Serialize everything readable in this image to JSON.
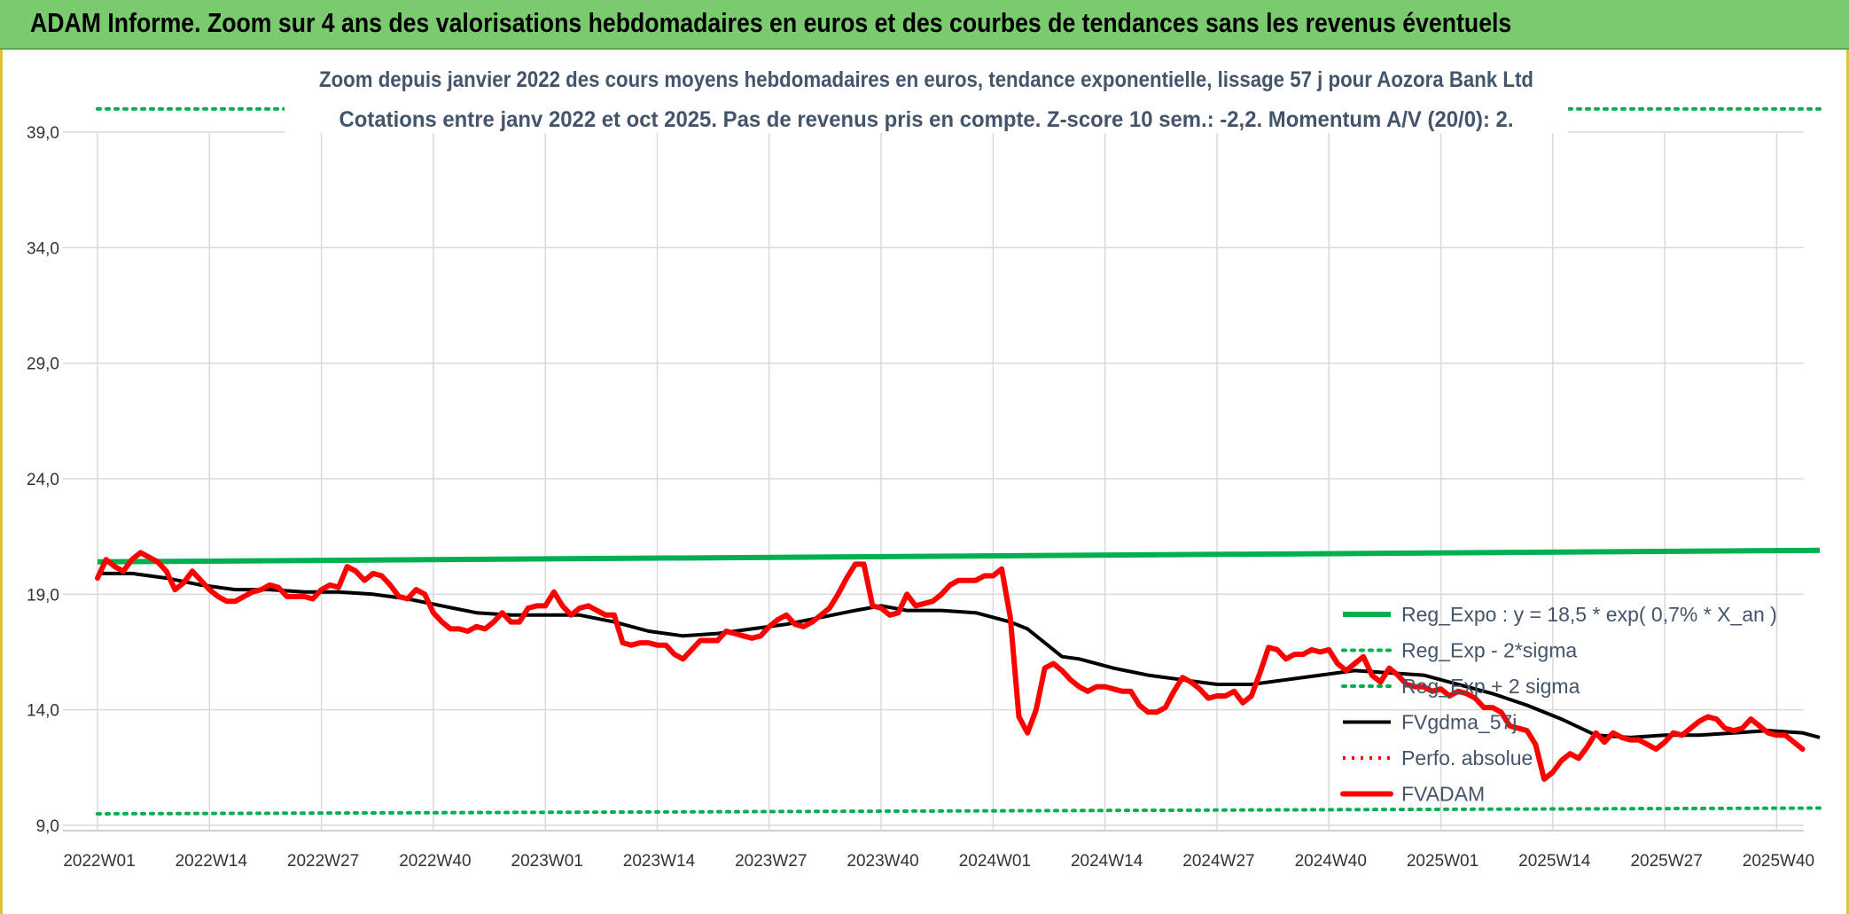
{
  "banner": {
    "title": "ADAM Informe. Zoom sur 4 ans des valorisations hebdomadaires en euros et des courbes de tendances sans les revenus éventuels"
  },
  "chart_data": {
    "type": "line",
    "title": "Zoom depuis janvier 2022 des cours moyens hebdomadaires en euros, tendance exponentielle, lissage 57 j pour Aozora Bank Ltd",
    "subtitle": "Cotations entre janv 2022 et oct 2025. Pas de revenus pris en compte. Z-score 10 sem.: -2,2. Momentum A/V (20/0): 2.",
    "xlabel": "",
    "ylabel": "",
    "ylim": [
      9.0,
      41.0
    ],
    "y_ticks": [
      "9,0",
      "14,0",
      "19,0",
      "24,0",
      "29,0",
      "34,0",
      "39,0"
    ],
    "y_tick_values": [
      9,
      14,
      19,
      24,
      29,
      34,
      39
    ],
    "x_ticks": [
      "2022W01",
      "2022W14",
      "2022W27",
      "2022W40",
      "2023W01",
      "2023W14",
      "2023W27",
      "2023W40",
      "2024W01",
      "2024W14",
      "2024W27",
      "2024W40",
      "2025W01",
      "2025W14",
      "2025W27",
      "2025W40"
    ],
    "x_tick_weeks": [
      0,
      13,
      26,
      39,
      52,
      65,
      78,
      91,
      104,
      117,
      130,
      143,
      156,
      169,
      182,
      195
    ],
    "x_range": [
      0,
      200
    ],
    "grid": true,
    "legend_placement": "bottom-right",
    "colors": {
      "reg_expo": "#00b050",
      "sigma": "#00b050",
      "fvgdma": "#000000",
      "perfo": "#ff0000",
      "fvadam": "#ff0000"
    },
    "legend": [
      {
        "key": "reg_expo",
        "label": "Reg_Expo : y = 18,5 * exp( 0,7% *  X_an )",
        "style": "solid-thick",
        "color": "#00b050"
      },
      {
        "key": "lower",
        "label": "Reg_Exp - 2*sigma",
        "style": "dotted",
        "color": "#00b050"
      },
      {
        "key": "upper",
        "label": "Reg_Exp + 2 sigma",
        "style": "dotted",
        "color": "#00b050"
      },
      {
        "key": "fvgdma",
        "label": "FVgdma_57j",
        "style": "solid",
        "color": "#000000"
      },
      {
        "key": "perfo",
        "label": "Perfo. absolue",
        "style": "dotted",
        "color": "#ff0000"
      },
      {
        "key": "fvadam",
        "label": "FVADAM",
        "style": "solid-thick",
        "color": "#ff0000"
      }
    ],
    "series": [
      {
        "name": "Reg_Expo : y = 18,5 * exp( 0,7% *  X_an )",
        "key": "reg_expo",
        "points": [
          [
            0,
            20.4
          ],
          [
            200,
            20.9
          ]
        ]
      },
      {
        "name": "Reg_Exp - 2*sigma",
        "key": "lower",
        "points": [
          [
            0,
            9.5
          ],
          [
            200,
            9.75
          ]
        ]
      },
      {
        "name": "Reg_Exp + 2 sigma",
        "key": "upper",
        "points": [
          [
            0,
            40.0
          ],
          [
            200,
            40.0
          ]
        ]
      },
      {
        "name": "FVgdma_57j",
        "key": "fvgdma",
        "points": [
          [
            0,
            19.9
          ],
          [
            4,
            19.9
          ],
          [
            8,
            19.7
          ],
          [
            12,
            19.4
          ],
          [
            16,
            19.2
          ],
          [
            20,
            19.2
          ],
          [
            24,
            19.1
          ],
          [
            28,
            19.1
          ],
          [
            32,
            19.0
          ],
          [
            36,
            18.8
          ],
          [
            40,
            18.5
          ],
          [
            44,
            18.2
          ],
          [
            48,
            18.1
          ],
          [
            52,
            18.1
          ],
          [
            56,
            18.1
          ],
          [
            60,
            17.8
          ],
          [
            64,
            17.4
          ],
          [
            68,
            17.2
          ],
          [
            72,
            17.3
          ],
          [
            76,
            17.5
          ],
          [
            80,
            17.7
          ],
          [
            84,
            18.0
          ],
          [
            88,
            18.3
          ],
          [
            91,
            18.5
          ],
          [
            94,
            18.3
          ],
          [
            98,
            18.3
          ],
          [
            102,
            18.2
          ],
          [
            106,
            17.8
          ],
          [
            108,
            17.5
          ],
          [
            110,
            16.9
          ],
          [
            112,
            16.3
          ],
          [
            114,
            16.2
          ],
          [
            118,
            15.8
          ],
          [
            122,
            15.5
          ],
          [
            126,
            15.3
          ],
          [
            130,
            15.1
          ],
          [
            134,
            15.1
          ],
          [
            138,
            15.3
          ],
          [
            142,
            15.5
          ],
          [
            146,
            15.7
          ],
          [
            150,
            15.6
          ],
          [
            154,
            15.5
          ],
          [
            158,
            15.1
          ],
          [
            162,
            14.7
          ],
          [
            166,
            14.2
          ],
          [
            170,
            13.6
          ],
          [
            174,
            12.9
          ],
          [
            178,
            12.8
          ],
          [
            182,
            12.9
          ],
          [
            186,
            12.9
          ],
          [
            190,
            13.0
          ],
          [
            194,
            13.1
          ],
          [
            198,
            13.0
          ],
          [
            200,
            12.8
          ]
        ]
      },
      {
        "name": "Perfo. absolue",
        "key": "perfo",
        "points": []
      },
      {
        "name": "FVADAM",
        "key": "fvadam",
        "points": [
          [
            0,
            19.7
          ],
          [
            1,
            20.5
          ],
          [
            2,
            20.2
          ],
          [
            3,
            20.0
          ],
          [
            4,
            20.5
          ],
          [
            5,
            20.8
          ],
          [
            6,
            20.6
          ],
          [
            7,
            20.4
          ],
          [
            8,
            20.0
          ],
          [
            9,
            19.2
          ],
          [
            10,
            19.5
          ],
          [
            11,
            20.0
          ],
          [
            12,
            19.6
          ],
          [
            13,
            19.2
          ],
          [
            14,
            18.9
          ],
          [
            15,
            18.7
          ],
          [
            16,
            18.7
          ],
          [
            17,
            18.9
          ],
          [
            18,
            19.1
          ],
          [
            19,
            19.2
          ],
          [
            20,
            19.4
          ],
          [
            21,
            19.3
          ],
          [
            22,
            18.9
          ],
          [
            23,
            18.9
          ],
          [
            24,
            18.9
          ],
          [
            25,
            18.8
          ],
          [
            26,
            19.2
          ],
          [
            27,
            19.4
          ],
          [
            28,
            19.3
          ],
          [
            29,
            20.2
          ],
          [
            30,
            20.0
          ],
          [
            31,
            19.6
          ],
          [
            32,
            19.9
          ],
          [
            33,
            19.8
          ],
          [
            34,
            19.4
          ],
          [
            35,
            18.9
          ],
          [
            36,
            18.8
          ],
          [
            37,
            19.2
          ],
          [
            38,
            19.0
          ],
          [
            39,
            18.2
          ],
          [
            40,
            17.8
          ],
          [
            41,
            17.5
          ],
          [
            42,
            17.5
          ],
          [
            43,
            17.4
          ],
          [
            44,
            17.6
          ],
          [
            45,
            17.5
          ],
          [
            46,
            17.8
          ],
          [
            47,
            18.2
          ],
          [
            48,
            17.8
          ],
          [
            49,
            17.8
          ],
          [
            50,
            18.4
          ],
          [
            51,
            18.5
          ],
          [
            52,
            18.5
          ],
          [
            53,
            19.1
          ],
          [
            54,
            18.5
          ],
          [
            55,
            18.1
          ],
          [
            56,
            18.4
          ],
          [
            57,
            18.5
          ],
          [
            58,
            18.3
          ],
          [
            59,
            18.1
          ],
          [
            60,
            18.1
          ],
          [
            61,
            16.9
          ],
          [
            62,
            16.8
          ],
          [
            63,
            16.9
          ],
          [
            64,
            16.9
          ],
          [
            65,
            16.8
          ],
          [
            66,
            16.8
          ],
          [
            67,
            16.4
          ],
          [
            68,
            16.2
          ],
          [
            69,
            16.6
          ],
          [
            70,
            17.0
          ],
          [
            71,
            17.0
          ],
          [
            72,
            17.0
          ],
          [
            73,
            17.4
          ],
          [
            74,
            17.3
          ],
          [
            75,
            17.2
          ],
          [
            76,
            17.1
          ],
          [
            77,
            17.2
          ],
          [
            78,
            17.6
          ],
          [
            79,
            17.9
          ],
          [
            80,
            18.1
          ],
          [
            81,
            17.7
          ],
          [
            82,
            17.6
          ],
          [
            83,
            17.8
          ],
          [
            84,
            18.1
          ],
          [
            85,
            18.4
          ],
          [
            86,
            19.0
          ],
          [
            87,
            19.7
          ],
          [
            88,
            20.3
          ],
          [
            89,
            20.3
          ],
          [
            90,
            18.5
          ],
          [
            91,
            18.4
          ],
          [
            92,
            18.1
          ],
          [
            93,
            18.2
          ],
          [
            94,
            19.0
          ],
          [
            95,
            18.5
          ],
          [
            96,
            18.6
          ],
          [
            97,
            18.7
          ],
          [
            98,
            19.0
          ],
          [
            99,
            19.4
          ],
          [
            100,
            19.6
          ],
          [
            101,
            19.6
          ],
          [
            102,
            19.6
          ],
          [
            103,
            19.8
          ],
          [
            104,
            19.8
          ],
          [
            105,
            20.1
          ],
          [
            106,
            18.0
          ],
          [
            107,
            13.7
          ],
          [
            108,
            13.0
          ],
          [
            109,
            14.0
          ],
          [
            110,
            15.8
          ],
          [
            111,
            16.0
          ],
          [
            112,
            15.7
          ],
          [
            113,
            15.3
          ],
          [
            114,
            15.0
          ],
          [
            115,
            14.8
          ],
          [
            116,
            15.0
          ],
          [
            117,
            15.0
          ],
          [
            118,
            14.9
          ],
          [
            119,
            14.8
          ],
          [
            120,
            14.8
          ],
          [
            121,
            14.2
          ],
          [
            122,
            13.9
          ],
          [
            123,
            13.9
          ],
          [
            124,
            14.1
          ],
          [
            125,
            14.8
          ],
          [
            126,
            15.4
          ],
          [
            127,
            15.2
          ],
          [
            128,
            14.9
          ],
          [
            129,
            14.5
          ],
          [
            130,
            14.6
          ],
          [
            131,
            14.6
          ],
          [
            132,
            14.8
          ],
          [
            133,
            14.3
          ],
          [
            134,
            14.6
          ],
          [
            135,
            15.6
          ],
          [
            136,
            16.7
          ],
          [
            137,
            16.6
          ],
          [
            138,
            16.2
          ],
          [
            139,
            16.4
          ],
          [
            140,
            16.4
          ],
          [
            141,
            16.6
          ],
          [
            142,
            16.5
          ],
          [
            143,
            16.6
          ],
          [
            144,
            16.0
          ],
          [
            145,
            15.7
          ],
          [
            146,
            16.0
          ],
          [
            147,
            16.3
          ],
          [
            148,
            15.5
          ],
          [
            149,
            15.2
          ],
          [
            150,
            15.8
          ],
          [
            151,
            15.5
          ],
          [
            152,
            15.1
          ],
          [
            153,
            15.0
          ],
          [
            154,
            15.0
          ],
          [
            155,
            14.8
          ],
          [
            156,
            14.9
          ],
          [
            157,
            14.6
          ],
          [
            158,
            14.8
          ],
          [
            159,
            14.7
          ],
          [
            160,
            14.5
          ],
          [
            161,
            14.1
          ],
          [
            162,
            14.1
          ],
          [
            163,
            13.9
          ],
          [
            164,
            13.3
          ],
          [
            165,
            13.2
          ],
          [
            166,
            13.1
          ],
          [
            167,
            12.5
          ],
          [
            168,
            11.0
          ],
          [
            169,
            11.3
          ],
          [
            170,
            11.8
          ],
          [
            171,
            12.1
          ],
          [
            172,
            11.9
          ],
          [
            173,
            12.4
          ],
          [
            174,
            13.0
          ],
          [
            175,
            12.6
          ],
          [
            176,
            13.0
          ],
          [
            177,
            12.8
          ],
          [
            178,
            12.7
          ],
          [
            179,
            12.7
          ],
          [
            180,
            12.5
          ],
          [
            181,
            12.3
          ],
          [
            182,
            12.6
          ],
          [
            183,
            13.0
          ],
          [
            184,
            12.9
          ],
          [
            185,
            13.2
          ],
          [
            186,
            13.5
          ],
          [
            187,
            13.7
          ],
          [
            188,
            13.6
          ],
          [
            189,
            13.2
          ],
          [
            190,
            13.1
          ],
          [
            191,
            13.2
          ],
          [
            192,
            13.6
          ],
          [
            193,
            13.3
          ],
          [
            194,
            13.0
          ],
          [
            195,
            12.9
          ],
          [
            196,
            12.9
          ],
          [
            197,
            12.6
          ],
          [
            198,
            12.3
          ]
        ]
      }
    ]
  }
}
